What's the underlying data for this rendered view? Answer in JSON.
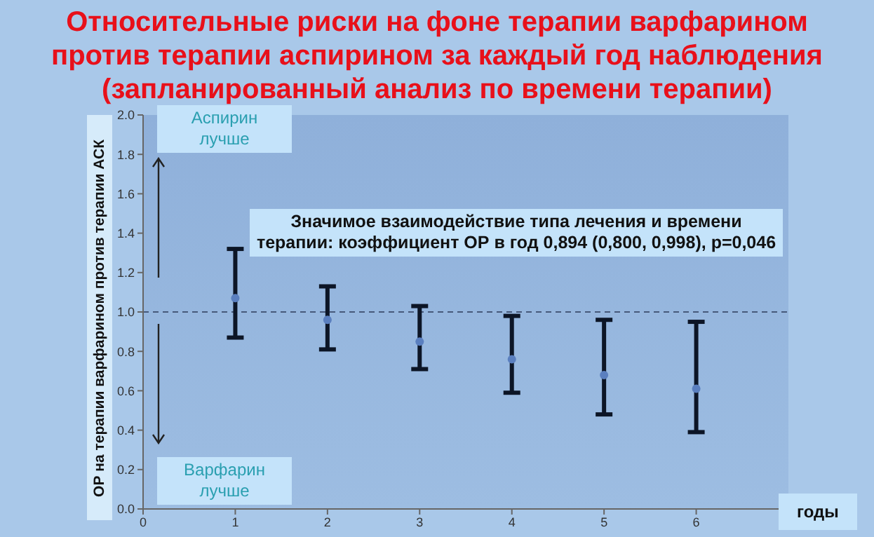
{
  "chart_data": {
    "type": "scatter",
    "title": "Относительные риски на фоне терапии варфарином против терапии аспирином за каждый год наблюдения (запланированный анализ по времени терапии)",
    "xlabel": "годы",
    "ylabel": "ОР на терапии варфарином против терапии АСК",
    "x": [
      1,
      2,
      3,
      4,
      5,
      6
    ],
    "series": [
      {
        "color": "#5a7fbf",
        "values": [
          1.07,
          0.96,
          0.85,
          0.76,
          0.68,
          0.61
        ],
        "errors": [
          [
            0.87,
            1.32
          ],
          [
            0.81,
            1.13
          ],
          [
            0.71,
            1.03
          ],
          [
            0.59,
            0.98
          ],
          [
            0.48,
            0.96
          ],
          [
            0.39,
            0.95
          ]
        ]
      }
    ],
    "xlim": [
      0,
      7
    ],
    "xticks": [
      0,
      1,
      2,
      3,
      4,
      5,
      6
    ],
    "ylim": [
      0,
      2
    ],
    "yticks": [
      {
        "value": 0,
        "label": "0.0"
      },
      0.2,
      0.4,
      0.6,
      0.8,
      {
        "value": 1,
        "label": "1.0"
      },
      1.2,
      1.4,
      1.6,
      1.8,
      {
        "value": 2,
        "label": "2.0"
      }
    ],
    "ref_lines": [
      {
        "axis": "y",
        "value": 1,
        "color": "#46597a",
        "line_style": "dashed"
      }
    ],
    "marker": "circle",
    "annotations": [
      "Аспирин лучше",
      "Варфарин лучше",
      "Значимое взаимодействие типа лечения и времени терапии: коэффициент ОР в год 0,894 (0,800, 0,998), p=0,046"
    ]
  }
}
